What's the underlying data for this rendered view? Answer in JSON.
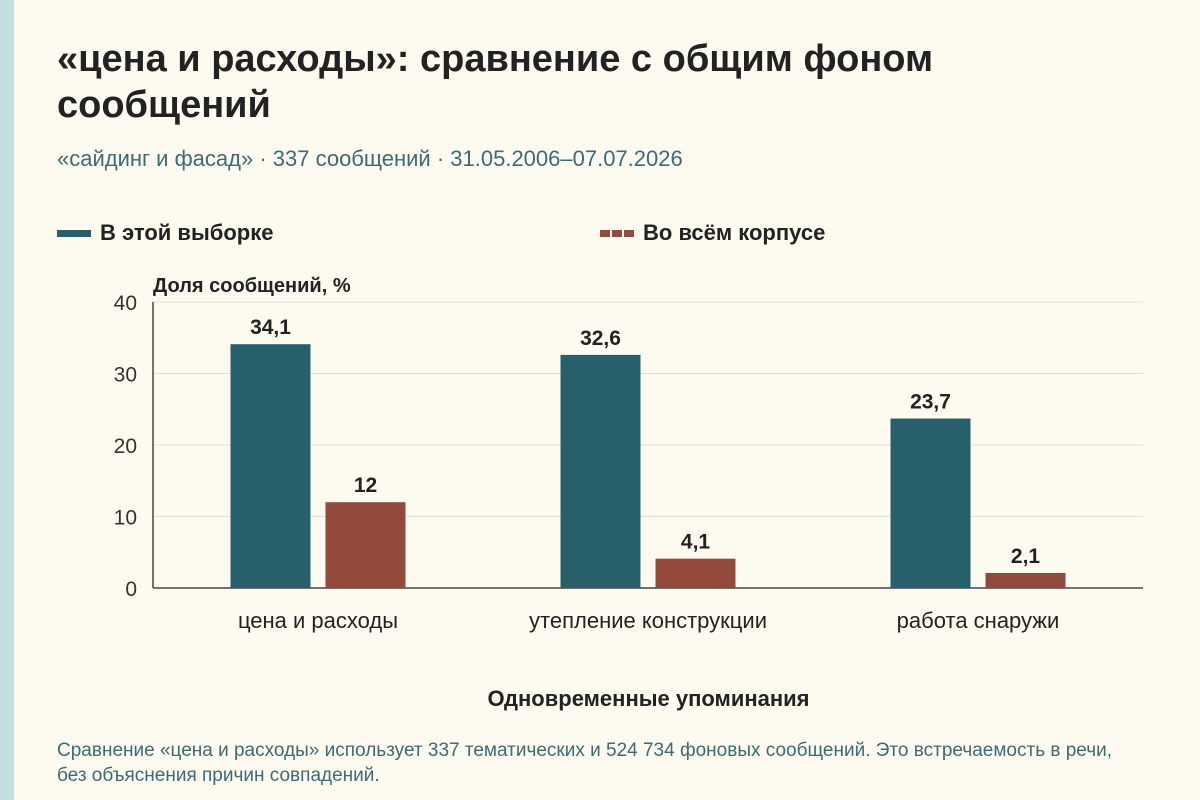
{
  "title": "«цена и расходы»: сравнение с общим фоном сообщений",
  "subtitle": "«сайдинг и фасад» · 337 сообщений · 31.05.2006–07.07.2026",
  "footnote": "Сравнение «цена и расходы» использует 337 тематических и 524 734 фоновых сообщений. Это встречаемость в речи, без объяснения причин совпадений.",
  "colors": {
    "sample": "#27606b",
    "corpus": "#934a3c",
    "grid": "#e2dfd4",
    "axis": "#444444"
  },
  "chart_data": {
    "type": "bar",
    "categories": [
      "цена и расходы",
      "утепление конструкции",
      "работа снаружи"
    ],
    "series": [
      {
        "name": "В этой выборке",
        "values": [
          34.1,
          32.6,
          23.7
        ],
        "labels": [
          "34,1",
          "32,6",
          "23,7"
        ]
      },
      {
        "name": "Во всём корпусе",
        "values": [
          12,
          4.1,
          2.1
        ],
        "labels": [
          "12",
          "4,1",
          "2,1"
        ]
      }
    ],
    "ylabel": "Доля сообщений, %",
    "xlabel": "Одновременные упоминания",
    "ylim": [
      0,
      40
    ],
    "yticks": [
      "0",
      "10",
      "20",
      "30",
      "40"
    ],
    "grid": true,
    "legend": "top"
  }
}
